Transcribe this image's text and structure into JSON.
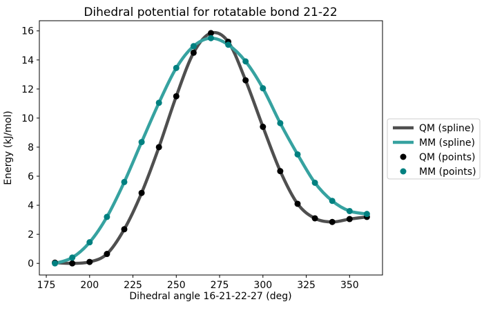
{
  "figure": {
    "background": "#ffffff",
    "frame_color": "#000000"
  },
  "chart_data": {
    "type": "line",
    "title": "Dihedral potential for rotatable bond 21-22",
    "xlabel": "Dihedral angle 16-21-22-27 (deg)",
    "ylabel": "Energy (kJ/mol)",
    "xlim": [
      171,
      369
    ],
    "ylim": [
      -0.8,
      16.7
    ],
    "xticks": [
      175,
      200,
      225,
      250,
      275,
      300,
      325,
      350
    ],
    "yticks": [
      0,
      2,
      4,
      6,
      8,
      10,
      12,
      14,
      16
    ],
    "grid": false,
    "legend_position": "outside-center-right",
    "x": [
      180,
      190,
      200,
      210,
      220,
      230,
      240,
      250,
      260,
      270,
      280,
      290,
      300,
      310,
      320,
      330,
      340,
      350,
      360
    ],
    "series": [
      {
        "name": "QM (spline)",
        "style": "spline",
        "color": "#4f4f4f",
        "values": [
          0.05,
          0.0,
          0.1,
          0.65,
          2.35,
          4.85,
          8.0,
          11.5,
          14.5,
          15.85,
          15.25,
          12.6,
          9.4,
          6.35,
          4.1,
          3.1,
          2.85,
          3.05,
          3.2
        ]
      },
      {
        "name": "MM (spline)",
        "style": "spline",
        "color": "#36a2a0",
        "values": [
          0.0,
          0.4,
          1.45,
          3.2,
          5.6,
          8.35,
          11.05,
          13.45,
          14.95,
          15.5,
          15.05,
          13.9,
          12.05,
          9.65,
          7.5,
          5.55,
          4.3,
          3.6,
          3.4
        ]
      },
      {
        "name": "QM (points)",
        "style": "points",
        "color": "#000000",
        "values": [
          0.05,
          0.0,
          0.1,
          0.65,
          2.35,
          4.85,
          8.0,
          11.5,
          14.5,
          15.85,
          15.25,
          12.6,
          9.4,
          6.35,
          4.1,
          3.1,
          2.85,
          3.05,
          3.2
        ]
      },
      {
        "name": "MM (points)",
        "style": "points",
        "color": "#008080",
        "values": [
          0.0,
          0.4,
          1.45,
          3.2,
          5.6,
          8.35,
          11.05,
          13.45,
          14.95,
          15.5,
          15.05,
          13.9,
          12.05,
          9.65,
          7.5,
          5.55,
          4.3,
          3.6,
          3.4
        ]
      }
    ],
    "legend": {
      "border_color": "#cccccc",
      "background": "#ffffff",
      "entries": [
        "QM (spline)",
        "MM (spline)",
        "QM (points)",
        "MM (points)"
      ]
    }
  }
}
